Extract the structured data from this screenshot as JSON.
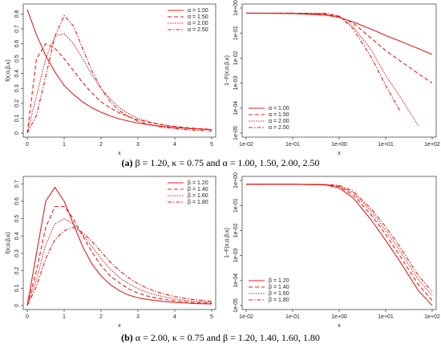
{
  "chart_data": [
    {
      "type": "line",
      "xlabel": "x",
      "ylabel": "f(x;α,β,κ)",
      "legend": "top-right",
      "xlim": [
        0,
        5
      ],
      "xticks": [
        0,
        1,
        2,
        3,
        4,
        5
      ],
      "ylim": [
        0,
        0.84
      ],
      "yticks": [
        0.0,
        0.1,
        0.2,
        0.3,
        0.4,
        0.5,
        0.6,
        0.7,
        0.8
      ],
      "x": [
        0,
        0.25,
        0.5,
        0.75,
        1,
        1.25,
        1.5,
        1.75,
        2,
        2.25,
        2.5,
        2.75,
        3,
        3.25,
        3.5,
        3.75,
        4,
        4.25,
        4.5,
        4.75,
        5
      ],
      "series": [
        {
          "name": "α = 1.00",
          "color": "#e0201b",
          "dash": "solid",
          "values": [
            0.83,
            0.66,
            0.52,
            0.41,
            0.32,
            0.26,
            0.21,
            0.17,
            0.14,
            0.115,
            0.095,
            0.08,
            0.068,
            0.058,
            0.05,
            0.043,
            0.037,
            0.033,
            0.029,
            0.026,
            0.023
          ]
        },
        {
          "name": "α = 1.50",
          "color": "#e0201b",
          "dash": "dashed",
          "values": [
            0,
            0.5,
            0.6,
            0.57,
            0.5,
            0.42,
            0.34,
            0.27,
            0.21,
            0.17,
            0.135,
            0.11,
            0.09,
            0.075,
            0.063,
            0.053,
            0.045,
            0.038,
            0.033,
            0.029,
            0.025
          ]
        },
        {
          "name": "α = 2.00",
          "color": "#e0201b",
          "dash": "dotted",
          "values": [
            0,
            0.25,
            0.5,
            0.65,
            0.67,
            0.6,
            0.5,
            0.39,
            0.3,
            0.23,
            0.17,
            0.13,
            0.1,
            0.08,
            0.065,
            0.052,
            0.043,
            0.036,
            0.03,
            0.026,
            0.022
          ]
        },
        {
          "name": "α = 2.50",
          "color": "#e0201b",
          "dash": "dotdash",
          "values": [
            0,
            0.12,
            0.38,
            0.65,
            0.79,
            0.72,
            0.57,
            0.42,
            0.3,
            0.21,
            0.15,
            0.11,
            0.08,
            0.06,
            0.047,
            0.037,
            0.03,
            0.024,
            0.02,
            0.017,
            0.014
          ]
        }
      ]
    },
    {
      "type": "line",
      "xlabel": "x",
      "ylabel": "1−F(x;α,β,κ)",
      "legend": "bottom-left",
      "xlog": true,
      "ylog": true,
      "xlim": [
        0.01,
        100
      ],
      "xticks": [
        {
          "value": 0.01,
          "label": "1e-02"
        },
        {
          "value": 0.1,
          "label": "1e-01"
        },
        {
          "value": 1,
          "label": "1e+00"
        },
        {
          "value": 10,
          "label": "1e+01"
        },
        {
          "value": 100,
          "label": "1e+02"
        }
      ],
      "ylim": [
        1e-05,
        1
      ],
      "yticks": [
        {
          "value": 1e-05,
          "label": "1e-05"
        },
        {
          "value": 0.0001,
          "label": "1e-04"
        },
        {
          "value": 0.001,
          "label": "1e-03"
        },
        {
          "value": 0.01,
          "label": "1e-02"
        },
        {
          "value": 0.1,
          "label": "1e-01"
        },
        {
          "value": 1,
          "label": "1e+00"
        }
      ],
      "x": [
        0.01,
        0.1,
        0.5,
        1,
        2,
        5,
        10,
        20,
        50,
        100
      ],
      "series": [
        {
          "name": "α = 1.00",
          "color": "#e0201b",
          "dash": "solid",
          "values": [
            0.62,
            0.6,
            0.52,
            0.42,
            0.28,
            0.14,
            0.08,
            0.048,
            0.024,
            0.014
          ]
        },
        {
          "name": "α = 1.50",
          "color": "#e0201b",
          "dash": "dashed",
          "values": [
            0.62,
            0.62,
            0.57,
            0.45,
            0.25,
            0.06,
            0.02,
            0.008,
            0.0024,
            0.001
          ]
        },
        {
          "name": "α = 2.00",
          "color": "#e0201b",
          "dash": "dotted",
          "values": [
            0.62,
            0.62,
            0.6,
            0.47,
            0.18,
            0.02,
            0.002,
            0.0003,
            2e-05,
            null
          ]
        },
        {
          "name": "α = 2.50",
          "color": "#e0201b",
          "dash": "dotdash",
          "values": [
            0.62,
            0.62,
            0.61,
            0.48,
            0.15,
            0.01,
            0.0008,
            8e-05,
            null,
            null
          ]
        }
      ]
    },
    {
      "type": "line",
      "xlabel": "x",
      "ylabel": "f(x;α,β,κ)",
      "legend": "top-right",
      "xlim": [
        0,
        5
      ],
      "xticks": [
        0,
        1,
        2,
        3,
        4,
        5
      ],
      "ylim": [
        0,
        0.72
      ],
      "yticks": [
        0.0,
        0.1,
        0.2,
        0.3,
        0.4,
        0.5,
        0.6,
        0.7
      ],
      "x": [
        0,
        0.25,
        0.5,
        0.75,
        1,
        1.25,
        1.5,
        1.75,
        2,
        2.25,
        2.5,
        2.75,
        3,
        3.25,
        3.5,
        3.75,
        4,
        4.25,
        4.5,
        4.75,
        5
      ],
      "series": [
        {
          "name": "β = 1.20",
          "color": "#e0201b",
          "dash": "solid",
          "values": [
            0,
            0.3,
            0.6,
            0.68,
            0.6,
            0.47,
            0.34,
            0.24,
            0.17,
            0.12,
            0.085,
            0.06,
            0.045,
            0.035,
            0.028,
            0.022,
            0.018,
            0.015,
            0.012,
            0.01,
            0.009
          ]
        },
        {
          "name": "β = 1.40",
          "color": "#e0201b",
          "dash": "dashed",
          "values": [
            0,
            0.2,
            0.45,
            0.57,
            0.57,
            0.5,
            0.4,
            0.31,
            0.23,
            0.17,
            0.13,
            0.095,
            0.072,
            0.055,
            0.043,
            0.034,
            0.027,
            0.022,
            0.018,
            0.015,
            0.013
          ]
        },
        {
          "name": "β = 1.60",
          "color": "#e0201b",
          "dash": "dotted",
          "values": [
            0,
            0.15,
            0.35,
            0.47,
            0.5,
            0.47,
            0.41,
            0.34,
            0.27,
            0.21,
            0.16,
            0.125,
            0.097,
            0.076,
            0.06,
            0.048,
            0.038,
            0.031,
            0.026,
            0.021,
            0.018
          ]
        },
        {
          "name": "β = 1.80",
          "color": "#e0201b",
          "dash": "dotdash",
          "values": [
            0,
            0.11,
            0.27,
            0.38,
            0.43,
            0.45,
            0.42,
            0.37,
            0.31,
            0.25,
            0.2,
            0.16,
            0.125,
            0.1,
            0.08,
            0.064,
            0.052,
            0.042,
            0.035,
            0.029,
            0.024
          ]
        }
      ]
    },
    {
      "type": "line",
      "xlabel": "x",
      "ylabel": "1−F(x;α,β,κ)",
      "legend": "bottom-left",
      "xlog": true,
      "ylog": true,
      "xlim": [
        0.01,
        100
      ],
      "xticks": [
        {
          "value": 0.01,
          "label": "1e-02"
        },
        {
          "value": 0.1,
          "label": "1e-01"
        },
        {
          "value": 1,
          "label": "1e+00"
        },
        {
          "value": 10,
          "label": "1e+01"
        },
        {
          "value": 100,
          "label": "1e+02"
        }
      ],
      "ylim": [
        1e-05,
        1
      ],
      "yticks": [
        {
          "value": 1e-05,
          "label": "1e-05"
        },
        {
          "value": 0.0001,
          "label": "1e-04"
        },
        {
          "value": 0.001,
          "label": "1e-03"
        },
        {
          "value": 0.01,
          "label": "1e-02"
        },
        {
          "value": 0.1,
          "label": "1e-01"
        },
        {
          "value": 1,
          "label": "1e+00"
        }
      ],
      "x": [
        0.01,
        0.1,
        0.5,
        1,
        2,
        5,
        10,
        20,
        50,
        100
      ],
      "series": [
        {
          "name": "β = 1.20",
          "color": "#e0201b",
          "dash": "solid",
          "values": [
            0.7,
            0.7,
            0.66,
            0.5,
            0.2,
            0.025,
            0.004,
            0.0006,
            4e-05,
            1e-05
          ]
        },
        {
          "name": "β = 1.40",
          "color": "#e0201b",
          "dash": "dashed",
          "values": [
            0.7,
            0.7,
            0.68,
            0.56,
            0.26,
            0.04,
            0.007,
            0.001,
            7e-05,
            1.6e-05
          ]
        },
        {
          "name": "β = 1.60",
          "color": "#e0201b",
          "dash": "dotted",
          "values": [
            0.7,
            0.7,
            0.69,
            0.6,
            0.32,
            0.055,
            0.01,
            0.0016,
            0.00011,
            2.5e-05
          ]
        },
        {
          "name": "β = 1.80",
          "color": "#e0201b",
          "dash": "dotdash",
          "values": [
            0.7,
            0.7,
            0.69,
            0.63,
            0.37,
            0.07,
            0.014,
            0.0023,
            0.00016,
            3.5e-05
          ]
        }
      ]
    }
  ],
  "captions": [
    {
      "label": "(a)",
      "text": " β = 1.20, κ = 0.75 and α = 1.00, 1.50, 2.00, 2.50"
    },
    {
      "label": "(b)",
      "text": " α = 2.00, κ = 0.75 and β = 1.20, 1.40, 1.60, 1.80"
    }
  ]
}
